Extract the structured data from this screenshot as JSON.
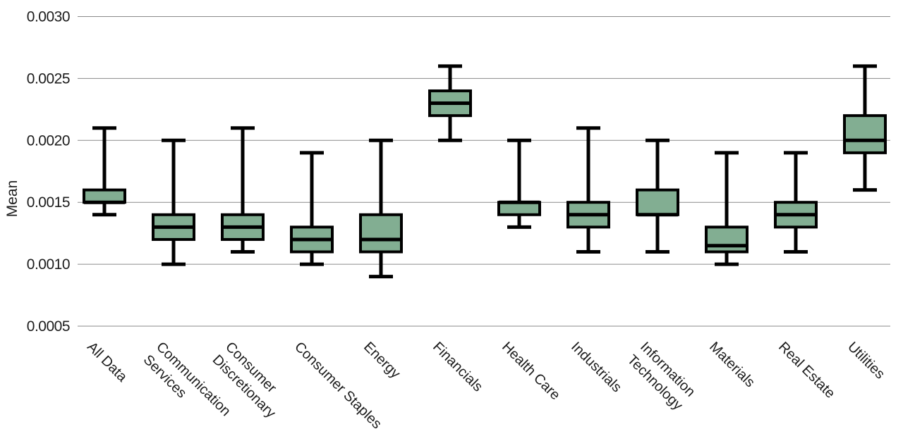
{
  "chart_data": {
    "type": "boxplot",
    "title": "",
    "xlabel": "",
    "ylabel": "Mean",
    "ylim": [
      0.0005,
      0.003
    ],
    "yticks": [
      {
        "value": 0.0005,
        "label": "0.0005"
      },
      {
        "value": 0.001,
        "label": "0.0010"
      },
      {
        "value": 0.0015,
        "label": "0.0015"
      },
      {
        "value": 0.002,
        "label": "0.0020"
      },
      {
        "value": 0.0025,
        "label": "0.0025"
      },
      {
        "value": 0.003,
        "label": "0.0030"
      }
    ],
    "grid": true,
    "legend": "none",
    "colors": {
      "box_fill": "#82ae92",
      "box_line": "#000000",
      "gridline": "#8a8a8a",
      "text": "#1c1c1c",
      "background": "#ffffff"
    },
    "categories": [
      "All Data",
      "Communication Services",
      "Consumer Discretionary",
      "Consumer Staples",
      "Energy",
      "Financials",
      "Health Care",
      "Industrials",
      "Information Technology",
      "Materials",
      "Real Estate",
      "Utilities"
    ],
    "category_label_lines": [
      [
        "All Data"
      ],
      [
        "Communication",
        "Services"
      ],
      [
        "Consumer",
        "Discretionary"
      ],
      [
        "Consumer Staples"
      ],
      [
        "Energy"
      ],
      [
        "Financials"
      ],
      [
        "Health Care"
      ],
      [
        "Industrials"
      ],
      [
        "Information",
        "Technology"
      ],
      [
        "Materials"
      ],
      [
        "Real Estate"
      ],
      [
        "Utilities"
      ]
    ],
    "series": [
      {
        "category": "All Data",
        "whisker_low": 0.0014,
        "q1": 0.0015,
        "median": 0.0015,
        "q3": 0.0016,
        "whisker_high": 0.0021
      },
      {
        "category": "Communication Services",
        "whisker_low": 0.001,
        "q1": 0.0012,
        "median": 0.0013,
        "q3": 0.0014,
        "whisker_high": 0.002
      },
      {
        "category": "Consumer Discretionary",
        "whisker_low": 0.0011,
        "q1": 0.0012,
        "median": 0.0013,
        "q3": 0.0014,
        "whisker_high": 0.0021
      },
      {
        "category": "Consumer Staples",
        "whisker_low": 0.001,
        "q1": 0.0011,
        "median": 0.0012,
        "q3": 0.0013,
        "whisker_high": 0.0019
      },
      {
        "category": "Energy",
        "whisker_low": 0.0009,
        "q1": 0.0011,
        "median": 0.0012,
        "q3": 0.0014,
        "whisker_high": 0.002
      },
      {
        "category": "Financials",
        "whisker_low": 0.002,
        "q1": 0.0022,
        "median": 0.0023,
        "q3": 0.0024,
        "whisker_high": 0.0026
      },
      {
        "category": "Health Care",
        "whisker_low": 0.0013,
        "q1": 0.0014,
        "median": 0.0015,
        "q3": 0.0015,
        "whisker_high": 0.002
      },
      {
        "category": "Industrials",
        "whisker_low": 0.0011,
        "q1": 0.0013,
        "median": 0.0014,
        "q3": 0.0015,
        "whisker_high": 0.0021
      },
      {
        "category": "Information Technology",
        "whisker_low": 0.0011,
        "q1": 0.0014,
        "median": 0.0014,
        "q3": 0.0016,
        "whisker_high": 0.002
      },
      {
        "category": "Materials",
        "whisker_low": 0.001,
        "q1": 0.0011,
        "median": 0.00115,
        "q3": 0.0013,
        "whisker_high": 0.0019
      },
      {
        "category": "Real Estate",
        "whisker_low": 0.0011,
        "q1": 0.0013,
        "median": 0.0014,
        "q3": 0.0015,
        "whisker_high": 0.0019
      },
      {
        "category": "Utilities",
        "whisker_low": 0.0016,
        "q1": 0.0019,
        "median": 0.002,
        "q3": 0.0022,
        "whisker_high": 0.0026
      }
    ]
  }
}
